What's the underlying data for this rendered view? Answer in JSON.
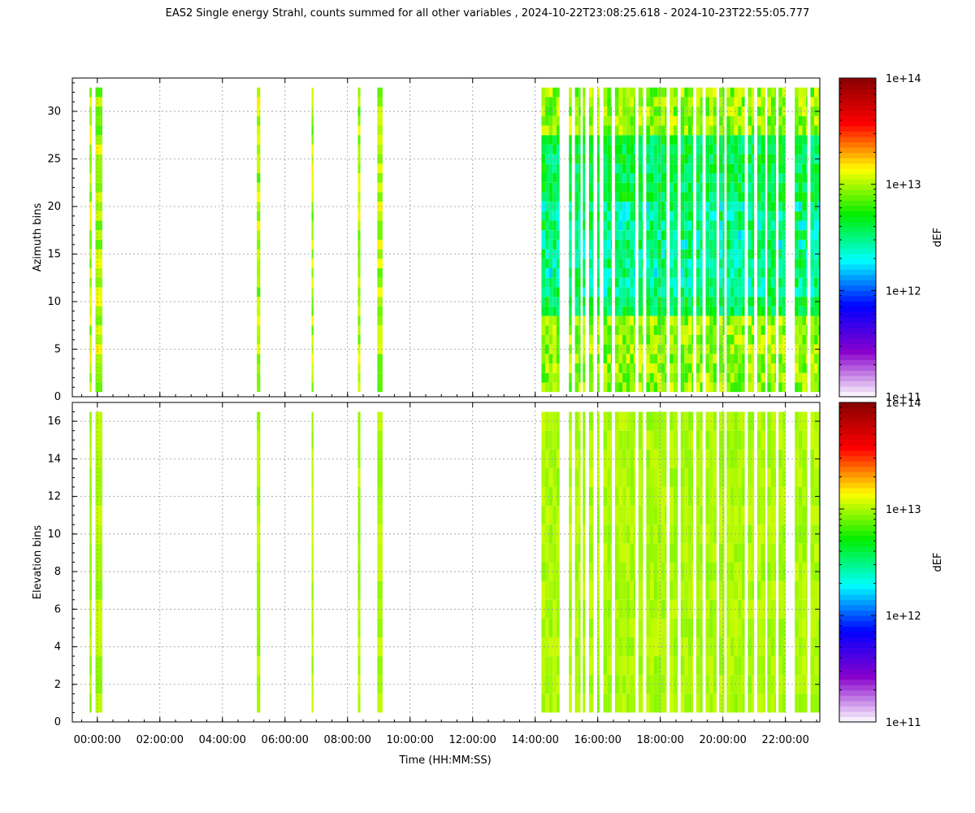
{
  "chart_data": {
    "type": "heatmap",
    "title": "EAS2  Single energy Strahl, counts summed for all other variables ,  2024-10-22T23:08:25.618 - 2024-10-23T22:55:05.777",
    "xlabel": "Time (HH:MM:SS)",
    "x_hours_range": [
      -0.8,
      23.1
    ],
    "x_ticks": [
      {
        "hour": 0,
        "label": "00:00:00"
      },
      {
        "hour": 2,
        "label": "02:00:00"
      },
      {
        "hour": 4,
        "label": "04:00:00"
      },
      {
        "hour": 6,
        "label": "06:00:00"
      },
      {
        "hour": 8,
        "label": "08:00:00"
      },
      {
        "hour": 10,
        "label": "10:00:00"
      },
      {
        "hour": 12,
        "label": "12:00:00"
      },
      {
        "hour": 14,
        "label": "14:00:00"
      },
      {
        "hour": 16,
        "label": "16:00:00"
      },
      {
        "hour": 18,
        "label": "18:00:00"
      },
      {
        "hour": 20,
        "label": "20:00:00"
      },
      {
        "hour": 22,
        "label": "22:00:00"
      }
    ],
    "grid": true,
    "data_intervals_hours": [
      [
        -0.25,
        -0.18
      ],
      [
        -0.06,
        0.16
      ],
      [
        5.1,
        5.21
      ],
      [
        6.85,
        6.91
      ],
      [
        8.33,
        8.41
      ],
      [
        8.95,
        9.12
      ],
      [
        14.2,
        14.78
      ],
      [
        15.08,
        15.17
      ],
      [
        15.27,
        15.45
      ],
      [
        15.52,
        15.6
      ],
      [
        15.72,
        15.86
      ],
      [
        15.98,
        16.06
      ],
      [
        16.18,
        16.45
      ],
      [
        16.55,
        17.2
      ],
      [
        17.3,
        17.45
      ],
      [
        17.55,
        18.2
      ],
      [
        18.3,
        18.55
      ],
      [
        18.65,
        19.05
      ],
      [
        19.15,
        19.35
      ],
      [
        19.45,
        19.8
      ],
      [
        19.88,
        20.05
      ],
      [
        20.12,
        20.7
      ],
      [
        20.8,
        21.0
      ],
      [
        21.1,
        21.35
      ],
      [
        21.42,
        21.7
      ],
      [
        21.78,
        22.0
      ],
      [
        22.3,
        22.7
      ],
      [
        22.8,
        23.1
      ]
    ],
    "panels": [
      {
        "ylabel": "Azimuth bins",
        "ylim": [
          0,
          33.5
        ],
        "y_ticks": [
          0,
          5,
          10,
          15,
          20,
          25,
          30
        ],
        "bins": 32,
        "zlabel": "dEF",
        "dominant_level_early": "1e13",
        "dominant_level_late": "4e12"
      },
      {
        "ylabel": "Elevation bins",
        "ylim": [
          0,
          17
        ],
        "y_ticks": [
          0,
          2,
          4,
          6,
          8,
          10,
          12,
          14,
          16
        ],
        "bins": 16,
        "zlabel": "dEF",
        "dominant_level_early": "1e13",
        "dominant_level_late": "1e13"
      }
    ],
    "colorbar": {
      "scale": "log",
      "zlim": [
        100000000000.0,
        100000000000000.0
      ],
      "tick_labels": [
        "1e+11",
        "1e+12",
        "1e+13",
        "1e+14"
      ],
      "colors": [
        "#ffffff",
        "#8800cc",
        "#0000ff",
        "#00ffff",
        "#00ee00",
        "#ffff00",
        "#ff0000",
        "#880000"
      ]
    }
  }
}
